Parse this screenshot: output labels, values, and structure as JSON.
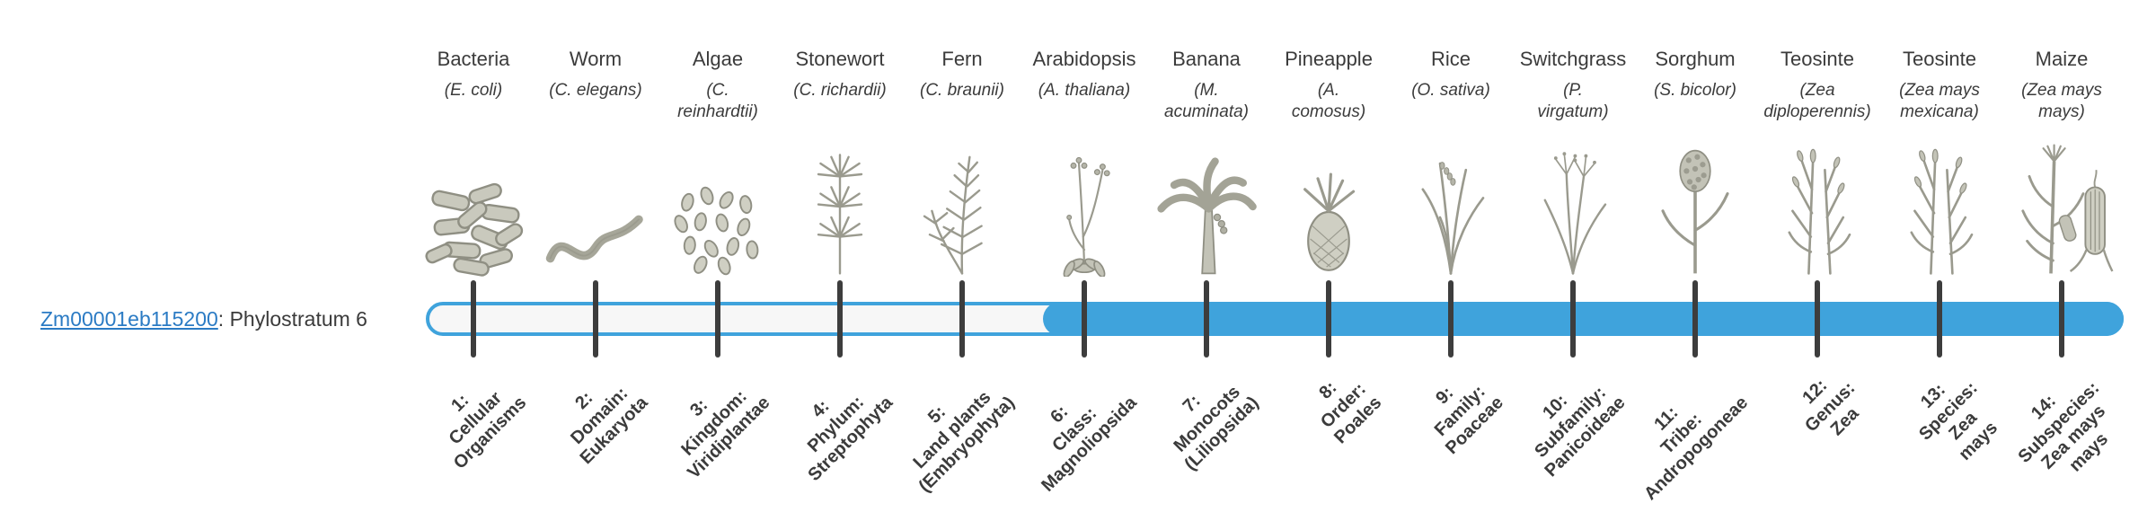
{
  "gene": {
    "id": "Zm00001eb115200",
    "suffix": ": Phylostratum 6",
    "current_phylostratum": 6
  },
  "bar": {
    "filled_from_stratum": 6,
    "total_strata": 14
  },
  "colors": {
    "bar_blue": "#3FA3DC",
    "track_bg": "#f7f7f7",
    "tick": "#3d3d3d",
    "text": "#3b3b3b",
    "link": "#2b7bc4",
    "illustration_gray": "#8f8f83"
  },
  "strata": [
    {
      "index": 1,
      "organism": "Bacteria",
      "scientific_lines": [
        "(E. coli)"
      ],
      "icon": "bacteria",
      "label_lines": [
        "1:",
        "Cellular",
        "Organisms"
      ]
    },
    {
      "index": 2,
      "organism": "Worm",
      "scientific_lines": [
        "(C. elegans)"
      ],
      "icon": "worm",
      "label_lines": [
        "2:",
        "Domain:",
        "Eukaryota"
      ]
    },
    {
      "index": 3,
      "organism": "Algae",
      "scientific_lines": [
        "(C.",
        "reinhardtii)"
      ],
      "icon": "algae",
      "label_lines": [
        "3:",
        "Kingdom:",
        "Viridiplantae"
      ]
    },
    {
      "index": 4,
      "organism": "Stonewort",
      "scientific_lines": [
        "(C. richardii)"
      ],
      "icon": "stonewort",
      "label_lines": [
        "4:",
        "Phylum:",
        "Streptophyta"
      ]
    },
    {
      "index": 5,
      "organism": "Fern",
      "scientific_lines": [
        "(C. braunii)"
      ],
      "icon": "fern",
      "label_lines": [
        "5:",
        "Land plants",
        "(Embryophyta)"
      ]
    },
    {
      "index": 6,
      "organism": "Arabidopsis",
      "scientific_lines": [
        "(A. thaliana)"
      ],
      "icon": "arabidopsis",
      "label_lines": [
        "6:",
        "Class:",
        "Magnoliopsida"
      ]
    },
    {
      "index": 7,
      "organism": "Banana",
      "scientific_lines": [
        "(M.",
        "acuminata)"
      ],
      "icon": "banana",
      "label_lines": [
        "7:",
        "Monocots",
        "(Liliopsida)"
      ]
    },
    {
      "index": 8,
      "organism": "Pineapple",
      "scientific_lines": [
        "(A.",
        "comosus)"
      ],
      "icon": "pineapple",
      "label_lines": [
        "8:",
        "Order:",
        "Poales"
      ]
    },
    {
      "index": 9,
      "organism": "Rice",
      "scientific_lines": [
        "(O. sativa)"
      ],
      "icon": "rice",
      "label_lines": [
        "9:",
        "Family:",
        "Poaceae"
      ]
    },
    {
      "index": 10,
      "organism": "Switchgrass",
      "scientific_lines": [
        "(P.",
        "virgatum)"
      ],
      "icon": "switchgrass",
      "label_lines": [
        "10:",
        "Subfamily:",
        "Panicoideae"
      ]
    },
    {
      "index": 11,
      "organism": "Sorghum",
      "scientific_lines": [
        "(S. bicolor)"
      ],
      "icon": "sorghum",
      "label_lines": [
        "11:",
        "Tribe:",
        "Andropogoneae"
      ]
    },
    {
      "index": 12,
      "organism": "Teosinte",
      "scientific_lines": [
        "(Zea",
        "diploperennis)"
      ],
      "icon": "teosinte",
      "label_lines": [
        "12:",
        "Genus:",
        "Zea"
      ]
    },
    {
      "index": 13,
      "organism": "Teosinte",
      "scientific_lines": [
        "(Zea mays",
        "mexicana)"
      ],
      "icon": "teosinte",
      "label_lines": [
        "13:",
        "Species:",
        "Zea",
        "mays"
      ]
    },
    {
      "index": 14,
      "organism": "Maize",
      "scientific_lines": [
        "(Zea mays",
        "mays)"
      ],
      "icon": "maize",
      "label_lines": [
        "14:",
        "Subspecies:",
        "Zea mays",
        "mays"
      ]
    }
  ]
}
